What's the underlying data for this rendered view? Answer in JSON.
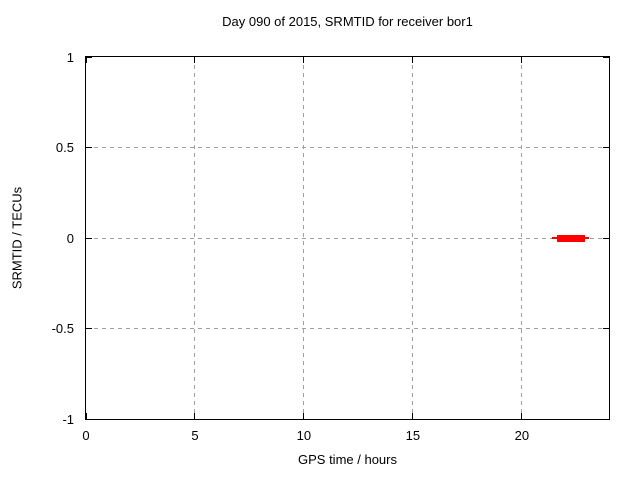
{
  "chart_data": {
    "type": "line",
    "title": "Day 090 of 2015, SRMTID for receiver bor1",
    "xlabel": "GPS time / hours",
    "ylabel": "SRMTID / TECUs",
    "xlim": [
      0,
      24
    ],
    "ylim": [
      -1,
      1
    ],
    "x_ticks": [
      0,
      5,
      10,
      15,
      20
    ],
    "x_tick_labels": [
      "0",
      "5",
      "10",
      "15",
      "20"
    ],
    "y_ticks": [
      -1,
      -0.5,
      0,
      0.5,
      1
    ],
    "y_tick_labels": [
      "-1",
      "-0.5",
      "0",
      "0.5",
      "1"
    ],
    "grid": true,
    "grid_style": "dashed",
    "legend": false,
    "background_color": "#ffffff",
    "frame_color": "#000000",
    "grid_color": "#a0a0a0",
    "series": [
      {
        "name": "SRMTID",
        "color": "#ff0000",
        "shape": "horizontal-segment-with-whiskers",
        "y": 0,
        "x_start": 21.4,
        "x_end": 23.1,
        "core_x_start": 21.6,
        "core_x_end": 22.9
      }
    ]
  }
}
